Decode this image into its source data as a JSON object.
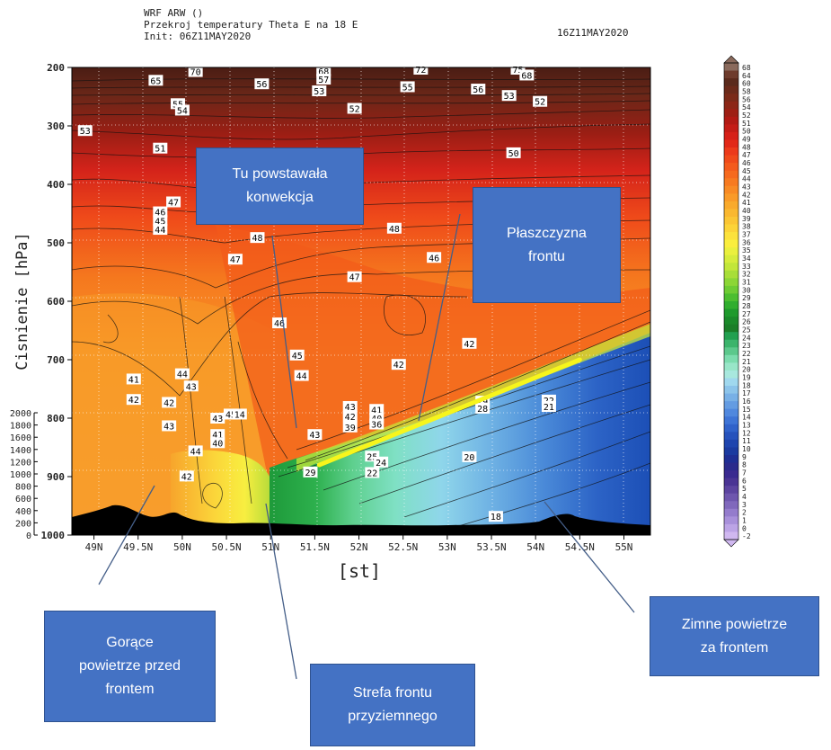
{
  "header": {
    "model": "WRF ARW ()",
    "title": "Przekroj temperatury Theta E na 18 E",
    "init": "Init: 06Z11MAY2020",
    "valid": "16Z11MAY2020"
  },
  "chart_data": {
    "type": "heatmap",
    "variable": "Theta E",
    "xlabel": "[st]",
    "ylabel": "Cisnienie [hPa]",
    "x_ticks": [
      "49N",
      "49.5N",
      "50N",
      "50.5N",
      "51N",
      "51.5N",
      "52N",
      "52.5N",
      "53N",
      "53.5N",
      "54N",
      "54.5N",
      "55N"
    ],
    "x_tick_values": [
      49,
      49.5,
      50,
      50.5,
      51,
      51.5,
      52,
      52.5,
      53,
      53.5,
      54,
      54.5,
      55
    ],
    "xlim": [
      48.75,
      55.3
    ],
    "y_ticks": [
      "200",
      "300",
      "400",
      "500",
      "600",
      "700",
      "800",
      "900",
      "1000"
    ],
    "y_tick_values": [
      200,
      300,
      400,
      500,
      600,
      700,
      800,
      900,
      1000
    ],
    "ylim": [
      1000,
      200
    ],
    "height_ticks": [
      "2000",
      "1800",
      "1600",
      "1400",
      "1200",
      "1000",
      "800",
      "600",
      "400",
      "200",
      "0"
    ],
    "colorbar_labels": [
      "68",
      "64",
      "60",
      "58",
      "56",
      "54",
      "52",
      "51",
      "50",
      "49",
      "48",
      "47",
      "46",
      "45",
      "44",
      "43",
      "42",
      "41",
      "40",
      "39",
      "38",
      "37",
      "36",
      "35",
      "34",
      "33",
      "32",
      "31",
      "30",
      "29",
      "28",
      "27",
      "26",
      "25",
      "24",
      "23",
      "22",
      "21",
      "20",
      "19",
      "18",
      "17",
      "16",
      "15",
      "14",
      "13",
      "12",
      "11",
      "10",
      "9",
      "8",
      "7",
      "6",
      "5",
      "4",
      "3",
      "2",
      "1",
      "0",
      "-2"
    ],
    "grid": true,
    "front_line": {
      "x": [
        51.55,
        54.5
      ],
      "y": [
        880,
        700
      ]
    },
    "contour_labels": [
      {
        "t": "65",
        "x": 49.7,
        "y": 222
      },
      {
        "t": "70",
        "x": 50.15,
        "y": 207
      },
      {
        "t": "56",
        "x": 50.9,
        "y": 228
      },
      {
        "t": "68",
        "x": 51.6,
        "y": 206
      },
      {
        "t": "57",
        "x": 51.6,
        "y": 220
      },
      {
        "t": "53",
        "x": 51.55,
        "y": 240
      },
      {
        "t": "72",
        "x": 52.7,
        "y": 203
      },
      {
        "t": "55",
        "x": 52.55,
        "y": 233
      },
      {
        "t": "56",
        "x": 53.35,
        "y": 237
      },
      {
        "t": "75",
        "x": 53.8,
        "y": 203
      },
      {
        "t": "68",
        "x": 53.9,
        "y": 213
      },
      {
        "t": "53",
        "x": 53.7,
        "y": 248
      },
      {
        "t": "52",
        "x": 54.05,
        "y": 258
      },
      {
        "t": "55",
        "x": 49.95,
        "y": 262
      },
      {
        "t": "54",
        "x": 50.0,
        "y": 273
      },
      {
        "t": "52",
        "x": 51.95,
        "y": 270
      },
      {
        "t": "53",
        "x": 48.9,
        "y": 308
      },
      {
        "t": "51",
        "x": 49.75,
        "y": 338
      },
      {
        "t": "50",
        "x": 53.75,
        "y": 346
      },
      {
        "t": "47",
        "x": 49.9,
        "y": 430
      },
      {
        "t": "46",
        "x": 49.75,
        "y": 447
      },
      {
        "t": "45",
        "x": 49.75,
        "y": 462
      },
      {
        "t": "44",
        "x": 49.75,
        "y": 477
      },
      {
        "t": "48",
        "x": 50.85,
        "y": 491
      },
      {
        "t": "48",
        "x": 52.4,
        "y": 475
      },
      {
        "t": "47",
        "x": 50.6,
        "y": 528
      },
      {
        "t": "46",
        "x": 52.85,
        "y": 525
      },
      {
        "t": "47",
        "x": 51.95,
        "y": 558
      },
      {
        "t": "46",
        "x": 51.1,
        "y": 637
      },
      {
        "t": "42",
        "x": 53.25,
        "y": 672
      },
      {
        "t": "45",
        "x": 51.3,
        "y": 692
      },
      {
        "t": "42",
        "x": 52.45,
        "y": 708
      },
      {
        "t": "44",
        "x": 51.35,
        "y": 727
      },
      {
        "t": "41",
        "x": 49.45,
        "y": 733
      },
      {
        "t": "44",
        "x": 50.0,
        "y": 724
      },
      {
        "t": "43",
        "x": 50.1,
        "y": 745
      },
      {
        "t": "42",
        "x": 49.45,
        "y": 768
      },
      {
        "t": "42",
        "x": 49.85,
        "y": 773
      },
      {
        "t": "45",
        "x": 50.55,
        "y": 793
      },
      {
        "t": "14",
        "x": 50.65,
        "y": 793
      },
      {
        "t": "43",
        "x": 50.4,
        "y": 800
      },
      {
        "t": "43",
        "x": 51.9,
        "y": 780
      },
      {
        "t": "42",
        "x": 51.9,
        "y": 797
      },
      {
        "t": "41",
        "x": 52.2,
        "y": 785
      },
      {
        "t": "40",
        "x": 52.2,
        "y": 800
      },
      {
        "t": "43",
        "x": 49.85,
        "y": 813
      },
      {
        "t": "39",
        "x": 51.9,
        "y": 815
      },
      {
        "t": "36",
        "x": 52.2,
        "y": 810
      },
      {
        "t": "41",
        "x": 50.4,
        "y": 828
      },
      {
        "t": "40",
        "x": 50.4,
        "y": 842
      },
      {
        "t": "43",
        "x": 51.5,
        "y": 828
      },
      {
        "t": "29",
        "x": 53.4,
        "y": 771
      },
      {
        "t": "28",
        "x": 53.4,
        "y": 783
      },
      {
        "t": "22",
        "x": 54.15,
        "y": 769
      },
      {
        "t": "21",
        "x": 54.15,
        "y": 780
      },
      {
        "t": "44",
        "x": 50.15,
        "y": 856
      },
      {
        "t": "25",
        "x": 52.15,
        "y": 865
      },
      {
        "t": "24",
        "x": 52.25,
        "y": 875
      },
      {
        "t": "20",
        "x": 53.25,
        "y": 866
      },
      {
        "t": "29",
        "x": 51.45,
        "y": 892
      },
      {
        "t": "22",
        "x": 52.15,
        "y": 893
      },
      {
        "t": "42",
        "x": 50.05,
        "y": 899
      },
      {
        "t": "18",
        "x": 53.55,
        "y": 968
      }
    ]
  },
  "callouts": {
    "convection": [
      "Tu powstawała",
      "konwekcja"
    ],
    "front_plane": [
      "Płaszczyzna",
      "frontu"
    ],
    "warm_air": [
      "Gorące",
      "powietrze przed",
      "frontem"
    ],
    "surface_front": [
      "Strefa frontu",
      "przyziemnego"
    ],
    "cold_air": [
      "Zimne powietrze",
      "za frontem"
    ]
  }
}
